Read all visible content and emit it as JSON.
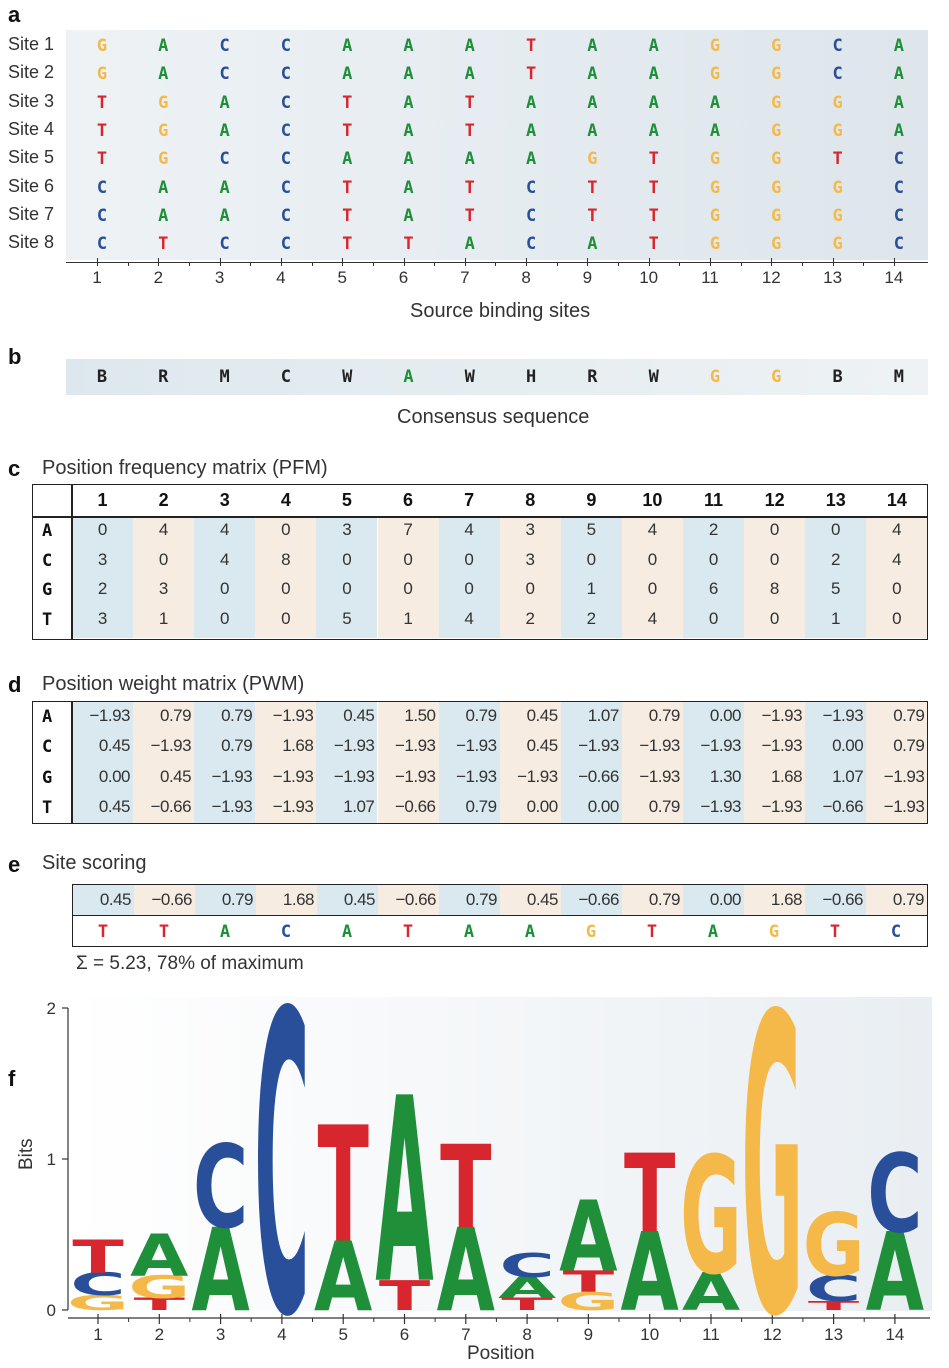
{
  "colors": {
    "A": "#1f8f3a",
    "C": "#2a4f9a",
    "G": "#f5b94a",
    "T": "#d8262f",
    "bg_blue": "#d9e9ef",
    "bg_tan": "#f6ece1",
    "panel_a_bg": "#e8eef2"
  },
  "panels": {
    "a": {
      "letter": "a",
      "xlabel": "Source binding sites",
      "sites": [
        {
          "label": "Site 1",
          "seq": "GACCAAATAAGGCA"
        },
        {
          "label": "Site 2",
          "seq": "GACCAAATAAGGCA"
        },
        {
          "label": "Site 3",
          "seq": "TGACTATAAAAGGA"
        },
        {
          "label": "Site 4",
          "seq": "TGACTATAAAAGGA"
        },
        {
          "label": "Site 5",
          "seq": "TGCCAAAAGTGGTC"
        },
        {
          "label": "Site 6",
          "seq": "CAACTATCTTGGGC"
        },
        {
          "label": "Site 7",
          "seq": "CAACTATCTTGGGC"
        },
        {
          "label": "Site 8",
          "seq": "CTCCTTACATGGGC"
        }
      ],
      "positions": [
        "1",
        "2",
        "3",
        "4",
        "5",
        "6",
        "7",
        "8",
        "9",
        "10",
        "11",
        "12",
        "13",
        "14"
      ]
    },
    "b": {
      "letter": "b",
      "label": "Consensus sequence",
      "seq": "BRMCWAWHRWGGBM"
    },
    "c": {
      "letter": "c",
      "title": "Position frequency matrix (PFM)",
      "header": [
        "1",
        "2",
        "3",
        "4",
        "5",
        "6",
        "7",
        "8",
        "9",
        "10",
        "11",
        "12",
        "13",
        "14"
      ],
      "rows": [
        {
          "base": "A",
          "values": [
            "0",
            "4",
            "4",
            "0",
            "3",
            "7",
            "4",
            "3",
            "5",
            "4",
            "2",
            "0",
            "0",
            "4"
          ]
        },
        {
          "base": "C",
          "values": [
            "3",
            "0",
            "4",
            "8",
            "0",
            "0",
            "0",
            "3",
            "0",
            "0",
            "0",
            "0",
            "2",
            "4"
          ]
        },
        {
          "base": "G",
          "values": [
            "2",
            "3",
            "0",
            "0",
            "0",
            "0",
            "0",
            "0",
            "1",
            "0",
            "6",
            "8",
            "5",
            "0"
          ]
        },
        {
          "base": "T",
          "values": [
            "3",
            "1",
            "0",
            "0",
            "5",
            "1",
            "4",
            "2",
            "2",
            "4",
            "0",
            "0",
            "1",
            "0"
          ]
        }
      ]
    },
    "d": {
      "letter": "d",
      "title": "Position weight matrix (PWM)",
      "rows": [
        {
          "base": "A",
          "values": [
            "−1.93",
            "0.79",
            "0.79",
            "−1.93",
            "0.45",
            "1.50",
            "0.79",
            "0.45",
            "1.07",
            "0.79",
            "0.00",
            "−1.93",
            "−1.93",
            "0.79"
          ]
        },
        {
          "base": "C",
          "values": [
            "0.45",
            "−1.93",
            "0.79",
            "1.68",
            "−1.93",
            "−1.93",
            "−1.93",
            "0.45",
            "−1.93",
            "−1.93",
            "−1.93",
            "−1.93",
            "0.00",
            "0.79"
          ]
        },
        {
          "base": "G",
          "values": [
            "0.00",
            "0.45",
            "−1.93",
            "−1.93",
            "−1.93",
            "−1.93",
            "−1.93",
            "−1.93",
            "−0.66",
            "−1.93",
            "1.30",
            "1.68",
            "1.07",
            "−1.93"
          ]
        },
        {
          "base": "T",
          "values": [
            "0.45",
            "−0.66",
            "−1.93",
            "−1.93",
            "1.07",
            "−0.66",
            "0.79",
            "0.00",
            "0.00",
            "0.79",
            "−1.93",
            "−1.93",
            "−0.66",
            "−1.93"
          ]
        }
      ]
    },
    "e": {
      "letter": "e",
      "title": "Site scoring",
      "scores": [
        "0.45",
        "−0.66",
        "0.79",
        "1.68",
        "0.45",
        "−0.66",
        "0.79",
        "0.45",
        "−0.66",
        "0.79",
        "0.00",
        "1.68",
        "−0.66",
        "0.79"
      ],
      "seq": "TTACATAAGTAGTC",
      "summary": "Σ = 5.23, 78% of maximum"
    },
    "f": {
      "letter": "f",
      "ylabel": "Bits",
      "xlabel": "Position",
      "yticks": [
        "0",
        "1",
        "2"
      ],
      "positions": [
        "1",
        "2",
        "3",
        "4",
        "5",
        "6",
        "7",
        "8",
        "9",
        "10",
        "11",
        "12",
        "13",
        "14"
      ]
    }
  },
  "chart_data": {
    "type": "sequence-logo",
    "xlabel": "Position",
    "ylabel": "Bits",
    "ylim": [
      0,
      2
    ],
    "stacks": [
      [
        [
          "G",
          0.1
        ],
        [
          "C",
          0.15
        ],
        [
          "T",
          0.22
        ]
      ],
      [
        [
          "T",
          0.08
        ],
        [
          "G",
          0.15
        ],
        [
          "A",
          0.28
        ]
      ],
      [
        [
          "A",
          0.55
        ],
        [
          "C",
          0.55
        ]
      ],
      [
        [
          "C",
          2.0
        ]
      ],
      [
        [
          "A",
          0.46
        ],
        [
          "T",
          0.77
        ]
      ],
      [
        [
          "T",
          0.2
        ],
        [
          "A",
          1.23
        ]
      ],
      [
        [
          "A",
          0.55
        ],
        [
          "T",
          0.55
        ]
      ],
      [
        [
          "T",
          0.08
        ],
        [
          "A",
          0.14
        ],
        [
          "C",
          0.16
        ]
      ],
      [
        [
          "G",
          0.12
        ],
        [
          "T",
          0.14
        ],
        [
          "A",
          0.47
        ]
      ],
      [
        [
          "A",
          0.52
        ],
        [
          "T",
          0.52
        ]
      ],
      [
        [
          "A",
          0.25
        ],
        [
          "G",
          0.78
        ]
      ],
      [
        [
          "G",
          1.98
        ]
      ],
      [
        [
          "T",
          0.06
        ],
        [
          "C",
          0.17
        ],
        [
          "G",
          0.42
        ]
      ],
      [
        [
          "A",
          0.52
        ],
        [
          "C",
          0.52
        ]
      ]
    ]
  }
}
